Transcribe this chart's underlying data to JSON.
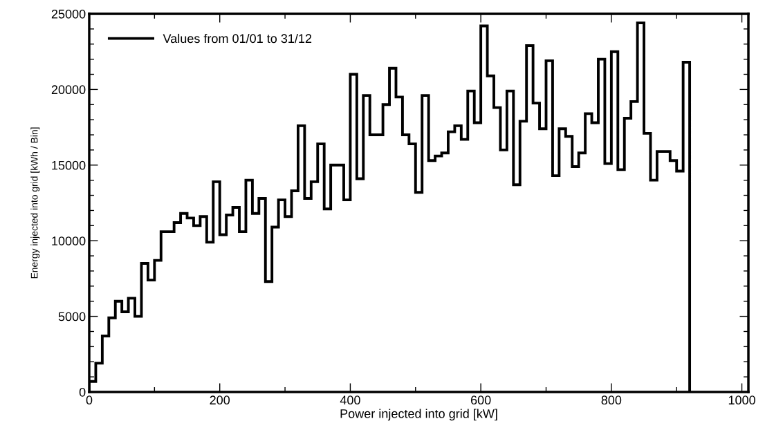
{
  "chart_data": {
    "type": "histogram",
    "xlabel": "Power injected into grid [kW]",
    "ylabel": "Energy injected into grid [kWh / Bin]",
    "bins": [
      0,
      10,
      20,
      30,
      40,
      50,
      60,
      70,
      80,
      90,
      100,
      110,
      120,
      130,
      140,
      150,
      160,
      170,
      180,
      190,
      200,
      210,
      220,
      230,
      240,
      250,
      260,
      270,
      280,
      290,
      300,
      310,
      320,
      330,
      340,
      350,
      360,
      370,
      380,
      390,
      400,
      410,
      420,
      430,
      440,
      450,
      460,
      470,
      480,
      490,
      500,
      510,
      520,
      530,
      540,
      550,
      560,
      570,
      580,
      590,
      600,
      610,
      620,
      630,
      640,
      650,
      660,
      670,
      680,
      690,
      700,
      710,
      720,
      730,
      740,
      750,
      760,
      770,
      780,
      790,
      800,
      810,
      820,
      830,
      840,
      850,
      860,
      870,
      880,
      890,
      900,
      910,
      920
    ],
    "series": [
      {
        "name": "Values from 01/01 to 31/12",
        "color": "#000000",
        "values": [
          700,
          1900,
          3700,
          4900,
          6000,
          5300,
          6200,
          5000,
          8500,
          7400,
          8700,
          10600,
          10600,
          11200,
          11800,
          11500,
          11000,
          11600,
          9900,
          13900,
          10400,
          11700,
          12200,
          10600,
          14000,
          11800,
          12800,
          7300,
          10900,
          12700,
          11600,
          13300,
          17600,
          12800,
          13900,
          16400,
          12100,
          15000,
          15000,
          12700,
          21000,
          14100,
          19600,
          17000,
          17000,
          19000,
          21400,
          19500,
          17000,
          16400,
          13200,
          19600,
          15300,
          15600,
          15800,
          17200,
          17600,
          16700,
          19900,
          17800,
          24200,
          20900,
          18800,
          16000,
          19900,
          13700,
          17900,
          22900,
          19100,
          17400,
          21900,
          14300,
          17400,
          16900,
          14900,
          15800,
          18400,
          17800,
          22000,
          15100,
          22500,
          14700,
          18100,
          19200,
          24400,
          17100,
          14000,
          15900,
          15900,
          15300,
          14600,
          21800
        ]
      }
    ],
    "xlim": [
      0,
      1010
    ],
    "ylim": [
      0,
      25000
    ],
    "xticks": [
      0,
      200,
      400,
      600,
      800,
      1000
    ],
    "yticks": [
      0,
      5000,
      10000,
      15000,
      20000,
      25000
    ],
    "grid": false,
    "legend": "top left"
  }
}
